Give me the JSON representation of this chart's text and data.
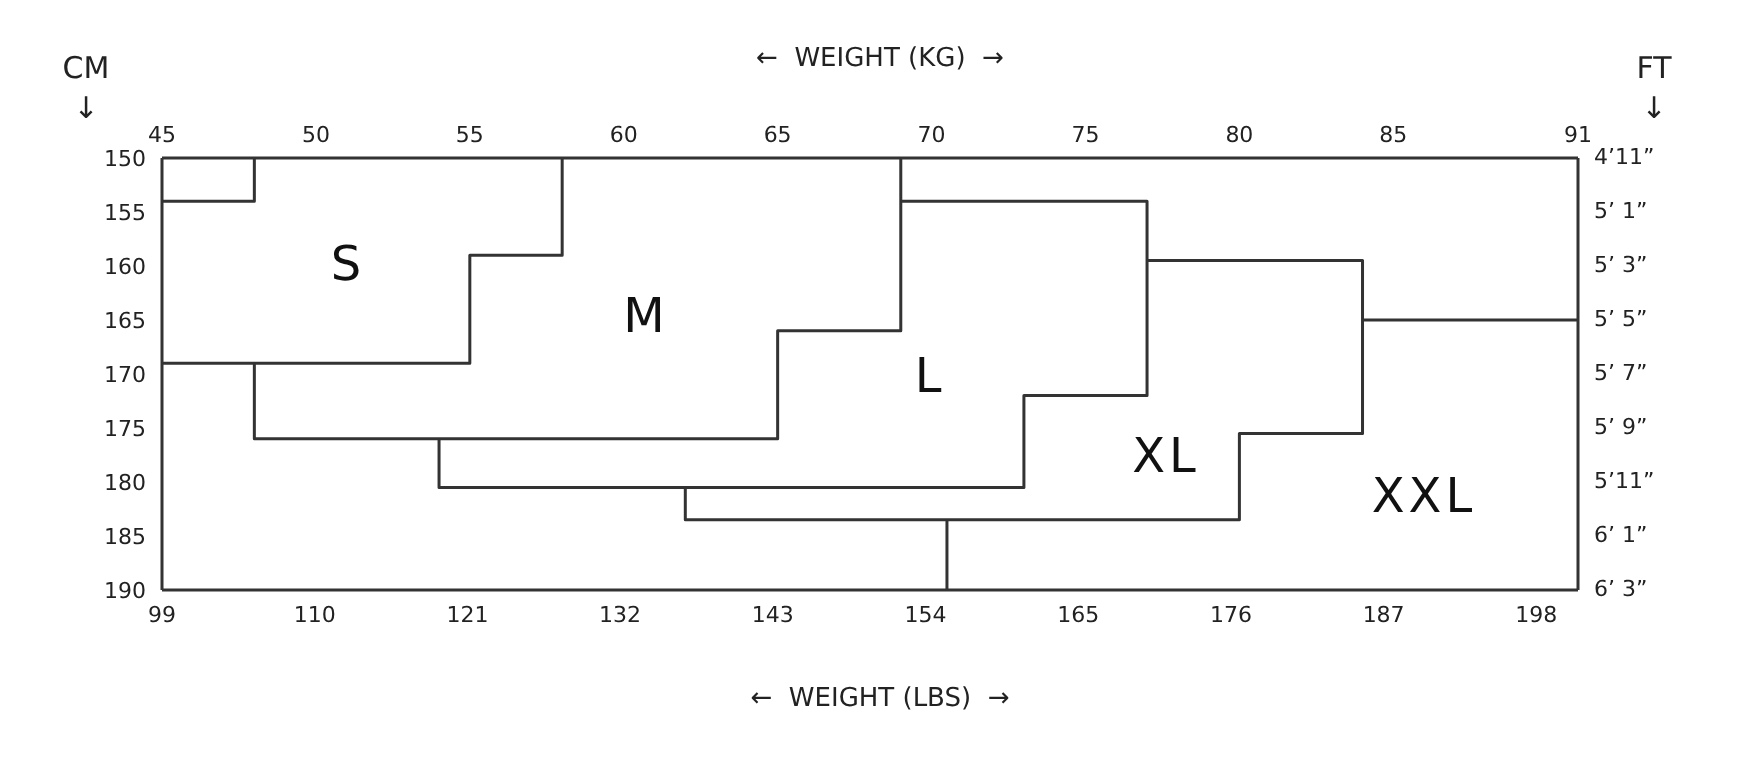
{
  "chart_data": {
    "type": "line",
    "xlabel": "←  WEIGHT (LBS)  →",
    "x2label": "←  WEIGHT (KG)  →",
    "ylabel": "CM ↓",
    "y2label": "FT ↓",
    "x2lim": [
      45,
      91
    ],
    "x2ticks": [
      45,
      50,
      55,
      60,
      65,
      70,
      75,
      80,
      85,
      91
    ],
    "xlim": [
      99,
      201
    ],
    "xticks": [
      99,
      110,
      121,
      132,
      143,
      154,
      165,
      176,
      187,
      198
    ],
    "ylim": [
      190,
      150
    ],
    "yticks": [
      150,
      155,
      160,
      165,
      170,
      175,
      180,
      185,
      190
    ],
    "grid": false,
    "legend": false,
    "marker": "none",
    "line_style": "solid",
    "series": [
      {
        "color": "#333333",
        "axis": "x2",
        "x": [
          45,
          48,
          48
        ],
        "values": [
          154,
          154,
          150
        ]
      },
      {
        "color": "#333333",
        "axis": "x2",
        "x": [
          58,
          58,
          55,
          55,
          45
        ],
        "values": [
          150,
          159,
          159,
          169,
          169
        ]
      },
      {
        "color": "#333333",
        "axis": "x2",
        "x": [
          69,
          69,
          65,
          65,
          48,
          48
        ],
        "values": [
          150,
          166,
          166,
          176,
          176,
          169
        ]
      },
      {
        "color": "#333333",
        "axis": "x2",
        "x": [
          69,
          77,
          77,
          73,
          73,
          54,
          54
        ],
        "values": [
          154,
          154,
          172,
          172,
          180.5,
          180.5,
          176
        ]
      },
      {
        "color": "#333333",
        "axis": "x2",
        "x": [
          77,
          84,
          84,
          80,
          80,
          62,
          62
        ],
        "values": [
          159.5,
          159.5,
          175.5,
          175.5,
          183.5,
          183.5,
          180.5
        ]
      },
      {
        "color": "#333333",
        "axis": "x2",
        "x": [
          84,
          91
        ],
        "values": [
          165,
          165
        ]
      },
      {
        "color": "#333333",
        "axis": "x2",
        "x": [
          70.5,
          70.5
        ],
        "values": [
          183.5,
          190
        ]
      }
    ],
    "annotations": [
      "S",
      "M",
      "L",
      "XL",
      "XXL",
      "4’11”",
      "5’ 1”",
      "5’ 3”",
      "5’ 5”",
      "5’ 7”",
      "5’ 9”",
      "5’11”",
      "6’ 1”",
      "6’ 3”"
    ]
  }
}
